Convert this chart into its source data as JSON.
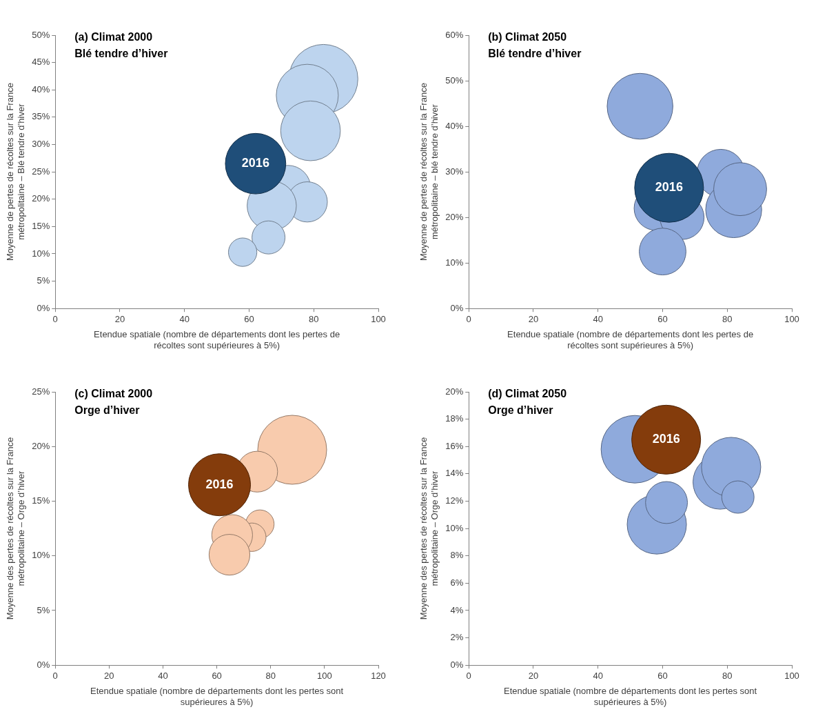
{
  "chart_data": [
    {
      "type": "bubble",
      "title": "(a) Climat 2000",
      "subtitle": "Blé tendre d’hiver",
      "xlabel": "Etendue spatiale (nombre de départements dont les pertes de récoltes sont supérieures à 5%)",
      "ylabel": "Moyenne de pertes de récoltes sur la France métropolitaine – Blé tendre d’hiver",
      "xlim": [
        0,
        100
      ],
      "xticks": [
        0,
        20,
        40,
        60,
        80,
        100
      ],
      "ylim": [
        0,
        50
      ],
      "yticks": [
        {
          "value": 0,
          "label": "0%"
        },
        {
          "value": 5,
          "label": "5%"
        },
        {
          "value": 10,
          "label": "10%"
        },
        {
          "value": 15,
          "label": "15%"
        },
        {
          "value": 20,
          "label": "20%"
        },
        {
          "value": 25,
          "label": "25%"
        },
        {
          "value": 30,
          "label": "30%"
        },
        {
          "value": 35,
          "label": "35%"
        },
        {
          "value": 40,
          "label": "40%"
        },
        {
          "value": 45,
          "label": "45%"
        },
        {
          "value": 50,
          "label": "50%"
        }
      ],
      "series": [
        {
          "color": "#bdd4ee",
          "x": [
            83,
            78,
            79,
            72,
            78,
            67,
            66,
            58
          ],
          "values": [
            42,
            39,
            32.5,
            22,
            19.5,
            18.8,
            13,
            10.3
          ],
          "sizes": [
            1,
            0.81,
            0.75,
            0.44,
            0.34,
            0.51,
            0.23,
            0.17
          ]
        },
        {
          "name": "2016",
          "color": "#1f4e79",
          "x": [
            62
          ],
          "values": [
            26.5
          ],
          "sizes": [
            0.77
          ]
        }
      ]
    },
    {
      "type": "bubble",
      "title": "(b) Climat 2050",
      "subtitle": "Blé tendre d’hiver",
      "xlabel": "Etendue spatiale (nombre de départements dont les pertes de récoltes sont supérieures à 5%)",
      "ylabel": "Moyenne de pertes de récoltes sur la France métropolitaine – blé tendre d’hiver",
      "xlim": [
        0,
        100
      ],
      "xticks": [
        0,
        20,
        40,
        60,
        80,
        100
      ],
      "ylim": [
        0,
        60
      ],
      "yticks": [
        {
          "value": 0,
          "label": "0%"
        },
        {
          "value": 10,
          "label": "10%"
        },
        {
          "value": 20,
          "label": "20%"
        },
        {
          "value": 30,
          "label": "30%"
        },
        {
          "value": 40,
          "label": "40%"
        },
        {
          "value": 50,
          "label": "50%"
        },
        {
          "value": 60,
          "label": "60%"
        }
      ],
      "series": [
        {
          "color": "#8faadc",
          "x": [
            53,
            78,
            82,
            84,
            58,
            66,
            60
          ],
          "values": [
            44.4,
            29.7,
            21.7,
            26.2,
            22,
            20,
            12.5
          ],
          "sizes": [
            0.91,
            0.48,
            0.66,
            0.59,
            0.41,
            0.41,
            0.46
          ]
        },
        {
          "name": "2016",
          "color": "#1f4e79",
          "x": [
            62
          ],
          "values": [
            26.5
          ],
          "sizes": [
            1
          ]
        }
      ]
    },
    {
      "type": "bubble",
      "title": "(c) Climat 2000",
      "subtitle": "Orge d’hiver",
      "xlabel": "Etendue spatiale (nombre de départements dont les pertes sont supérieures à 5%)",
      "ylabel": "Moyenne des pertes de récoltes sur la France métropolitaine – Orge d’hiver",
      "xlim": [
        0,
        120
      ],
      "xticks": [
        0,
        20,
        40,
        60,
        80,
        100,
        120
      ],
      "ylim": [
        0,
        25
      ],
      "yticks": [
        {
          "value": 0,
          "label": "0%"
        },
        {
          "value": 5,
          "label": "5%"
        },
        {
          "value": 10,
          "label": "10%"
        },
        {
          "value": 15,
          "label": "15%"
        },
        {
          "value": 20,
          "label": "20%"
        },
        {
          "value": 25,
          "label": "25%"
        }
      ],
      "series": [
        {
          "color": "#f8cbad",
          "x": [
            88,
            75,
            76,
            73,
            65.7,
            64.7
          ],
          "values": [
            19.7,
            17.7,
            12.9,
            11.7,
            11.9,
            10.1
          ],
          "sizes": [
            1,
            0.35,
            0.17,
            0.17,
            0.35,
            0.35
          ]
        },
        {
          "name": "2016",
          "color": "#843c0c",
          "x": [
            61
          ],
          "values": [
            16.5
          ],
          "sizes": [
            0.81
          ]
        }
      ]
    },
    {
      "type": "bubble",
      "title": "(d) Climat 2050",
      "subtitle": "Orge d’hiver",
      "xlabel": "Etendue spatiale (nombre de départements dont les pertes sont supérieures à 5%)",
      "ylabel": "Moyenne des pertes de récoltes sur la France métropolitaine – Orge d’hiver",
      "xlim": [
        0,
        100
      ],
      "xticks": [
        0,
        20,
        40,
        60,
        80,
        100
      ],
      "ylim": [
        0,
        20
      ],
      "yticks": [
        {
          "value": 0,
          "label": "0%"
        },
        {
          "value": 2,
          "label": "2%"
        },
        {
          "value": 4,
          "label": "4%"
        },
        {
          "value": 6,
          "label": "6%"
        },
        {
          "value": 8,
          "label": "8%"
        },
        {
          "value": 10,
          "label": "10%"
        },
        {
          "value": 12,
          "label": "12%"
        },
        {
          "value": 14,
          "label": "14%"
        },
        {
          "value": 16,
          "label": "16%"
        },
        {
          "value": 18,
          "label": "18%"
        },
        {
          "value": 20,
          "label": "20%"
        }
      ],
      "series": [
        {
          "color": "#8faadc",
          "x": [
            51.4,
            58.2,
            61.2,
            77.8,
            81.2,
            83.3
          ],
          "values": [
            15.8,
            10.3,
            11.9,
            13.4,
            14.5,
            12.3
          ],
          "sizes": [
            0.96,
            0.74,
            0.37,
            0.62,
            0.74,
            0.22
          ]
        },
        {
          "name": "2016",
          "color": "#843c0c",
          "x": [
            61.1
          ],
          "values": [
            16.5
          ],
          "sizes": [
            1
          ]
        }
      ]
    }
  ]
}
